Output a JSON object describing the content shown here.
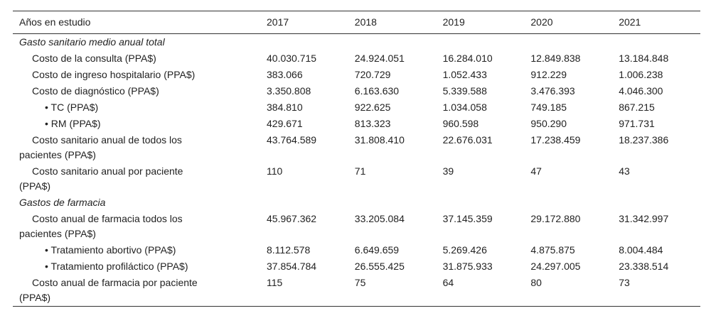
{
  "table": {
    "header": {
      "label": "Años en estudio",
      "years": [
        "2017",
        "2018",
        "2019",
        "2020",
        "2021"
      ]
    },
    "sections": [
      {
        "title": "Gasto sanitario medio anual total",
        "rows": [
          {
            "label": [
              "Costo de la consulta (PPA$)"
            ],
            "values": [
              "40.030.715",
              "24.924.051",
              "16.284.010",
              "12.849.838",
              "13.184.848"
            ]
          },
          {
            "label": [
              "Costo de ingreso hospitalario (PPA$)"
            ],
            "values": [
              "383.066",
              "720.729",
              "1.052.433",
              "912.229",
              "1.006.238"
            ]
          },
          {
            "label": [
              "Costo de diagnóstico (PPA$)"
            ],
            "values": [
              "3.350.808",
              "6.163.630",
              "5.339.588",
              "3.476.393",
              "4.046.300"
            ],
            "subrows": [
              {
                "label": [
                  "• TC (PPA$)"
                ],
                "values": [
                  "384.810",
                  "922.625",
                  "1.034.058",
                  "749.185",
                  "867.215"
                ]
              },
              {
                "label": [
                  "• RM (PPA$)"
                ],
                "values": [
                  "429.671",
                  "813.323",
                  "960.598",
                  "950.290",
                  "971.731"
                ]
              }
            ]
          },
          {
            "label": [
              "Costo sanitario anual de todos los",
              "pacientes (PPA$)"
            ],
            "values": [
              "43.764.589",
              "31.808.410",
              "22.676.031",
              "17.238.459",
              "18.237.386"
            ]
          },
          {
            "label": [
              "Costo sanitario anual por paciente",
              "(PPA$)"
            ],
            "values": [
              "110",
              "71",
              "39",
              "47",
              "43"
            ]
          }
        ]
      },
      {
        "title": "Gastos de farmacia",
        "rows": [
          {
            "label": [
              "Costo anual de farmacia todos los",
              "pacientes (PPA$)"
            ],
            "values": [
              "45.967.362",
              "33.205.084",
              "37.145.359",
              "29.172.880",
              "31.342.997"
            ],
            "subrows": [
              {
                "label": [
                  "• Tratamiento abortivo (PPA$)"
                ],
                "values": [
                  "8.112.578",
                  "6.649.659",
                  "5.269.426",
                  "4.875.875",
                  "8.004.484"
                ]
              },
              {
                "label": [
                  "• Tratamiento profiláctico (PPA$)"
                ],
                "values": [
                  "37.854.784",
                  "26.555.425",
                  "31.875.933",
                  "24.297.005",
                  "23.338.514"
                ]
              }
            ]
          },
          {
            "label": [
              "Costo anual de farmacia por paciente",
              "(PPA$)"
            ],
            "values": [
              "115",
              "75",
              "64",
              "80",
              "73"
            ]
          }
        ]
      }
    ]
  }
}
